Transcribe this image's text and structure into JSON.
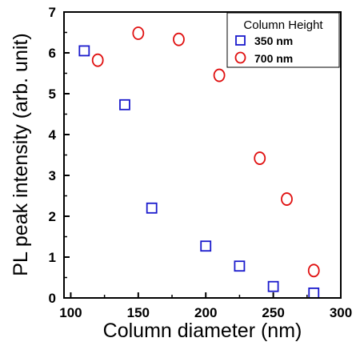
{
  "chart_data": {
    "type": "scatter",
    "xlabel": "Column diameter (nm)",
    "ylabel": "PL peak intensity (arb. unit)",
    "xlim": [
      95,
      300
    ],
    "ylim": [
      0,
      7
    ],
    "xticks": [
      100,
      150,
      200,
      250,
      300
    ],
    "yticks": [
      0,
      1,
      2,
      3,
      4,
      5,
      6,
      7
    ],
    "grid": false,
    "legend": {
      "title": "Column Height",
      "placement": "top-right"
    },
    "series": [
      {
        "name": "350 nm",
        "marker": "square",
        "color": "#1a1acc",
        "x": [
          110,
          140,
          160,
          200,
          225,
          250,
          280
        ],
        "y": [
          6.05,
          4.73,
          2.2,
          1.27,
          0.78,
          0.28,
          0.12
        ]
      },
      {
        "name": "700 nm",
        "marker": "circle",
        "color": "#e01010",
        "x": [
          120,
          150,
          180,
          210,
          240,
          260,
          280
        ],
        "y": [
          5.82,
          6.48,
          6.33,
          5.45,
          3.42,
          2.42,
          0.67
        ]
      }
    ]
  }
}
